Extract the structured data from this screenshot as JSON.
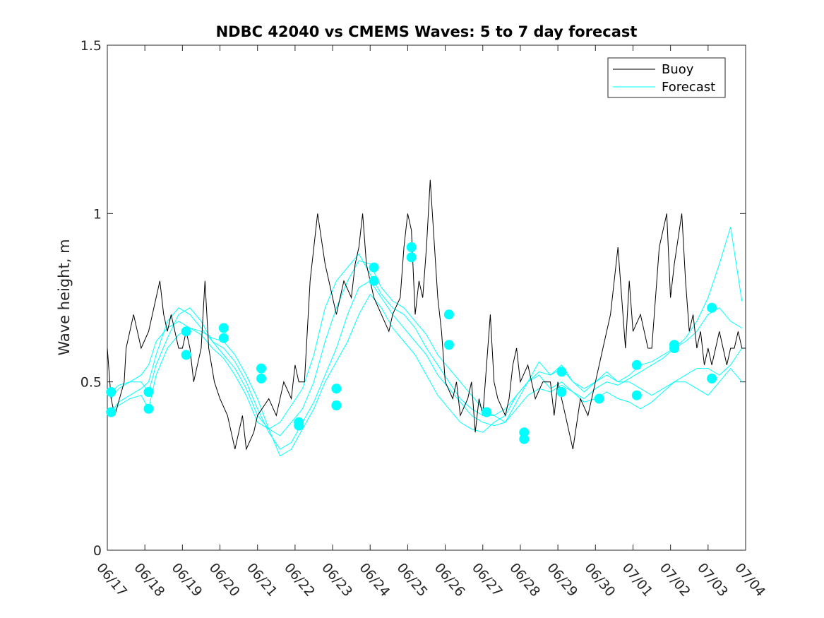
{
  "chart_data": {
    "type": "line",
    "title": "NDBC 42040 vs CMEMS Waves: 5 to 7 day forecast",
    "xlabel": "",
    "ylabel": "Wave height, m",
    "xlim": [
      "06/17",
      "07/04"
    ],
    "ylim": [
      0,
      1.5
    ],
    "x_ticks": [
      "06/17",
      "06/18",
      "06/19",
      "06/20",
      "06/21",
      "06/22",
      "06/23",
      "06/24",
      "06/25",
      "06/26",
      "06/27",
      "06/28",
      "06/29",
      "06/30",
      "07/01",
      "07/02",
      "07/03",
      "07/04"
    ],
    "y_ticks": [
      "0",
      "0.5",
      "1",
      "1.5"
    ],
    "grid": false,
    "legend": {
      "position": "top-right",
      "entries": [
        "Buoy",
        "Forecast"
      ]
    },
    "colors": {
      "buoy": "#000000",
      "forecast": "#00ffff"
    },
    "series": [
      {
        "name": "Buoy",
        "color": "#000000",
        "x": [
          0,
          0.1,
          0.2,
          0.45,
          0.5,
          0.6,
          0.7,
          0.9,
          1.1,
          1.3,
          1.4,
          1.5,
          1.6,
          1.7,
          1.8,
          1.9,
          2.0,
          2.1,
          2.2,
          2.3,
          2.4,
          2.5,
          2.6,
          2.7,
          2.85,
          3.0,
          3.2,
          3.3,
          3.4,
          3.5,
          3.6,
          3.7,
          3.9,
          4.0,
          4.3,
          4.5,
          4.7,
          4.9,
          5.0,
          5.1,
          5.25,
          5.4,
          5.6,
          5.8,
          6.0,
          6.1,
          6.3,
          6.5,
          6.6,
          6.7,
          6.8,
          6.9,
          7.0,
          7.1,
          7.3,
          7.5,
          7.6,
          7.8,
          7.9,
          8.0,
          8.1,
          8.2,
          8.3,
          8.4,
          8.5,
          8.6,
          8.8,
          8.9,
          9.0,
          9.2,
          9.3,
          9.4,
          9.6,
          9.7,
          9.8,
          9.9,
          10.0,
          10.1,
          10.2,
          10.3,
          10.4,
          10.6,
          10.7,
          10.8,
          10.9,
          11.0,
          11.2,
          11.4,
          11.6,
          11.8,
          11.9,
          12.0,
          12.2,
          12.4,
          12.6,
          12.8,
          13.0,
          13.2,
          13.4,
          13.6,
          13.8,
          13.9,
          14.0,
          14.2,
          14.4,
          14.5,
          14.6,
          14.7,
          14.8,
          14.9,
          15.0,
          15.1,
          15.3,
          15.4,
          15.5,
          15.6,
          15.7,
          15.8,
          15.9,
          16.0,
          16.1,
          16.2,
          16.3,
          16.4,
          16.5,
          16.6,
          16.7,
          16.8,
          16.9,
          17.0
        ],
        "y": [
          0.6,
          0.45,
          0.4,
          0.5,
          0.6,
          0.65,
          0.7,
          0.6,
          0.65,
          0.75,
          0.8,
          0.7,
          0.65,
          0.7,
          0.65,
          0.6,
          0.6,
          0.65,
          0.6,
          0.5,
          0.55,
          0.6,
          0.8,
          0.6,
          0.5,
          0.45,
          0.4,
          0.35,
          0.3,
          0.35,
          0.4,
          0.3,
          0.35,
          0.4,
          0.45,
          0.4,
          0.5,
          0.45,
          0.55,
          0.5,
          0.5,
          0.8,
          1.0,
          0.85,
          0.75,
          0.7,
          0.8,
          0.75,
          0.85,
          0.9,
          1.0,
          0.85,
          0.8,
          0.75,
          0.7,
          0.65,
          0.7,
          0.75,
          0.9,
          1.0,
          0.95,
          0.7,
          0.8,
          0.75,
          0.9,
          1.1,
          0.75,
          0.65,
          0.5,
          0.45,
          0.5,
          0.4,
          0.45,
          0.5,
          0.35,
          0.45,
          0.4,
          0.55,
          0.7,
          0.5,
          0.45,
          0.4,
          0.45,
          0.55,
          0.6,
          0.5,
          0.55,
          0.45,
          0.5,
          0.5,
          0.4,
          0.5,
          0.4,
          0.3,
          0.45,
          0.4,
          0.5,
          0.6,
          0.7,
          0.9,
          0.6,
          0.8,
          0.65,
          0.7,
          0.6,
          0.6,
          0.75,
          0.9,
          0.95,
          1.0,
          0.75,
          0.85,
          1.0,
          0.8,
          0.65,
          0.7,
          0.6,
          0.65,
          0.55,
          0.6,
          0.55,
          0.6,
          0.65,
          0.6,
          0.55,
          0.6,
          0.6,
          0.65,
          0.6,
          0.6
        ]
      },
      {
        "name": "Forecast",
        "color": "#00ffff",
        "x": [
          0.1,
          0.3,
          0.6,
          0.9,
          1.1,
          1.3,
          1.6,
          1.9,
          2.2,
          2.5,
          2.8,
          3.1,
          3.4,
          3.7,
          4.0,
          4.3,
          4.6,
          4.9,
          5.2,
          5.5,
          5.8,
          6.1,
          6.4,
          6.7,
          7.0,
          7.3,
          7.6,
          7.9,
          8.2,
          8.5,
          8.8,
          9.1,
          9.4,
          9.7,
          10.0,
          10.3,
          10.6,
          10.9,
          11.2,
          11.5,
          11.8,
          12.1,
          12.4,
          12.7,
          13.0,
          13.3,
          13.6,
          13.9,
          14.2,
          14.5,
          14.8,
          15.1,
          15.4,
          15.7,
          16.0,
          16.3,
          16.6,
          16.9
        ],
        "y": [
          0.45,
          0.48,
          0.5,
          0.52,
          0.55,
          0.62,
          0.66,
          0.68,
          0.66,
          0.64,
          0.6,
          0.57,
          0.52,
          0.46,
          0.38,
          0.36,
          0.38,
          0.43,
          0.48,
          0.58,
          0.72,
          0.8,
          0.84,
          0.88,
          0.82,
          0.76,
          0.72,
          0.7,
          0.66,
          0.6,
          0.55,
          0.5,
          0.45,
          0.42,
          0.4,
          0.4,
          0.42,
          0.46,
          0.5,
          0.53,
          0.52,
          0.55,
          0.5,
          0.47,
          0.5,
          0.52,
          0.5,
          0.52,
          0.55,
          0.56,
          0.58,
          0.6,
          0.62,
          0.65,
          0.7,
          0.72,
          0.68,
          0.66
        ]
      },
      {
        "name": "Forecast",
        "color": "#00ffff",
        "x": [
          0.1,
          0.3,
          0.6,
          0.9,
          1.1,
          1.3,
          1.6,
          1.9,
          2.2,
          2.5,
          2.8,
          3.1,
          3.4,
          3.7,
          4.0,
          4.3,
          4.6,
          4.9,
          5.2,
          5.5,
          5.8,
          6.1,
          6.4,
          6.7,
          7.0,
          7.3,
          7.6,
          7.9,
          8.2,
          8.5,
          8.8,
          9.1,
          9.4,
          9.7,
          10.0,
          10.3,
          10.6,
          10.9,
          11.2,
          11.5,
          11.8,
          12.1,
          12.4,
          12.7,
          13.0,
          13.3,
          13.6,
          13.9,
          14.2,
          14.5,
          14.8,
          15.1,
          15.4,
          15.7,
          16.0,
          16.3,
          16.6,
          16.9
        ],
        "y": [
          0.41,
          0.44,
          0.46,
          0.48,
          0.5,
          0.58,
          0.68,
          0.72,
          0.7,
          0.66,
          0.62,
          0.58,
          0.54,
          0.48,
          0.4,
          0.36,
          0.34,
          0.38,
          0.42,
          0.5,
          0.62,
          0.72,
          0.8,
          0.86,
          0.85,
          0.78,
          0.74,
          0.72,
          0.68,
          0.64,
          0.58,
          0.54,
          0.5,
          0.46,
          0.42,
          0.4,
          0.38,
          0.42,
          0.46,
          0.48,
          0.47,
          0.49,
          0.47,
          0.45,
          0.48,
          0.5,
          0.49,
          0.51,
          0.53,
          0.55,
          0.57,
          0.6,
          0.63,
          0.68,
          0.75,
          0.85,
          0.96,
          0.74
        ]
      },
      {
        "name": "Forecast",
        "color": "#00ffff",
        "x": [
          0.1,
          0.3,
          0.6,
          0.9,
          1.1,
          1.3,
          1.6,
          1.9,
          2.2,
          2.5,
          2.8,
          3.1,
          3.4,
          3.7,
          4.0,
          4.3,
          4.6,
          4.9,
          5.2,
          5.5,
          5.8,
          6.1,
          6.4,
          6.7,
          7.0,
          7.3,
          7.6,
          7.9,
          8.2,
          8.5,
          8.8,
          9.1,
          9.4,
          9.7,
          10.0,
          10.3,
          10.6,
          10.9,
          11.2,
          11.5,
          11.8,
          12.1,
          12.4,
          12.7,
          13.0,
          13.3,
          13.6,
          13.9,
          14.2,
          14.5,
          14.8,
          15.1,
          15.4,
          15.7,
          16.0,
          16.3,
          16.6,
          16.9
        ],
        "y": [
          0.47,
          0.49,
          0.5,
          0.5,
          0.47,
          0.55,
          0.63,
          0.7,
          0.72,
          0.68,
          0.62,
          0.6,
          0.56,
          0.5,
          0.42,
          0.35,
          0.3,
          0.32,
          0.38,
          0.44,
          0.52,
          0.6,
          0.7,
          0.78,
          0.8,
          0.75,
          0.7,
          0.66,
          0.62,
          0.58,
          0.52,
          0.48,
          0.44,
          0.4,
          0.38,
          0.37,
          0.38,
          0.44,
          0.5,
          0.56,
          0.52,
          0.54,
          0.5,
          0.48,
          0.5,
          0.53,
          0.5,
          0.5,
          0.48,
          0.46,
          0.48,
          0.5,
          0.52,
          0.54,
          0.54,
          0.52,
          0.55,
          0.6
        ]
      },
      {
        "name": "Forecast",
        "color": "#00ffff",
        "x": [
          0.1,
          0.3,
          0.6,
          0.9,
          1.1,
          1.3,
          1.6,
          1.9,
          2.2,
          2.5,
          2.8,
          3.1,
          3.4,
          3.7,
          4.0,
          4.3,
          4.6,
          4.9,
          5.2,
          5.5,
          5.8,
          6.1,
          6.4,
          6.7,
          7.0,
          7.3,
          7.6,
          7.9,
          8.2,
          8.5,
          8.8,
          9.1,
          9.4,
          9.7,
          10.0,
          10.3,
          10.6,
          10.9,
          11.2,
          11.5,
          11.8,
          12.1,
          12.4,
          12.7,
          13.0,
          13.3,
          13.6,
          13.9,
          14.2,
          14.5,
          14.8,
          15.1,
          15.4,
          15.7,
          16.0,
          16.3,
          16.6,
          16.9
        ],
        "y": [
          0.4,
          0.43,
          0.45,
          0.46,
          0.42,
          0.52,
          0.6,
          0.64,
          0.66,
          0.65,
          0.63,
          0.62,
          0.58,
          0.52,
          0.45,
          0.36,
          0.28,
          0.3,
          0.36,
          0.42,
          0.5,
          0.56,
          0.62,
          0.7,
          0.76,
          0.72,
          0.66,
          0.62,
          0.58,
          0.52,
          0.46,
          0.42,
          0.38,
          0.36,
          0.35,
          0.38,
          0.4,
          0.46,
          0.5,
          0.52,
          0.48,
          0.5,
          0.47,
          0.44,
          0.45,
          0.47,
          0.45,
          0.44,
          0.42,
          0.44,
          0.47,
          0.5,
          0.5,
          0.48,
          0.46,
          0.5,
          0.54,
          0.5
        ]
      }
    ],
    "markers": {
      "series": "Forecast",
      "x": [
        0.1,
        0.1,
        1.1,
        1.1,
        2.1,
        2.1,
        3.1,
        3.1,
        4.1,
        4.1,
        5.1,
        5.1,
        6.1,
        6.1,
        7.1,
        7.1,
        8.1,
        8.1,
        9.1,
        9.1,
        10.1,
        10.1,
        11.1,
        11.1,
        12.1,
        12.1,
        13.1,
        14.1,
        14.1,
        15.1,
        15.1,
        16.1,
        16.1
      ],
      "y": [
        0.47,
        0.41,
        0.47,
        0.42,
        0.65,
        0.58,
        0.66,
        0.63,
        0.54,
        0.51,
        0.38,
        0.37,
        0.48,
        0.43,
        0.84,
        0.8,
        0.9,
        0.87,
        0.7,
        0.61,
        0.41,
        0.41,
        0.35,
        0.33,
        0.53,
        0.47,
        0.45,
        0.55,
        0.46,
        0.61,
        0.6,
        0.72,
        0.51
      ]
    }
  }
}
